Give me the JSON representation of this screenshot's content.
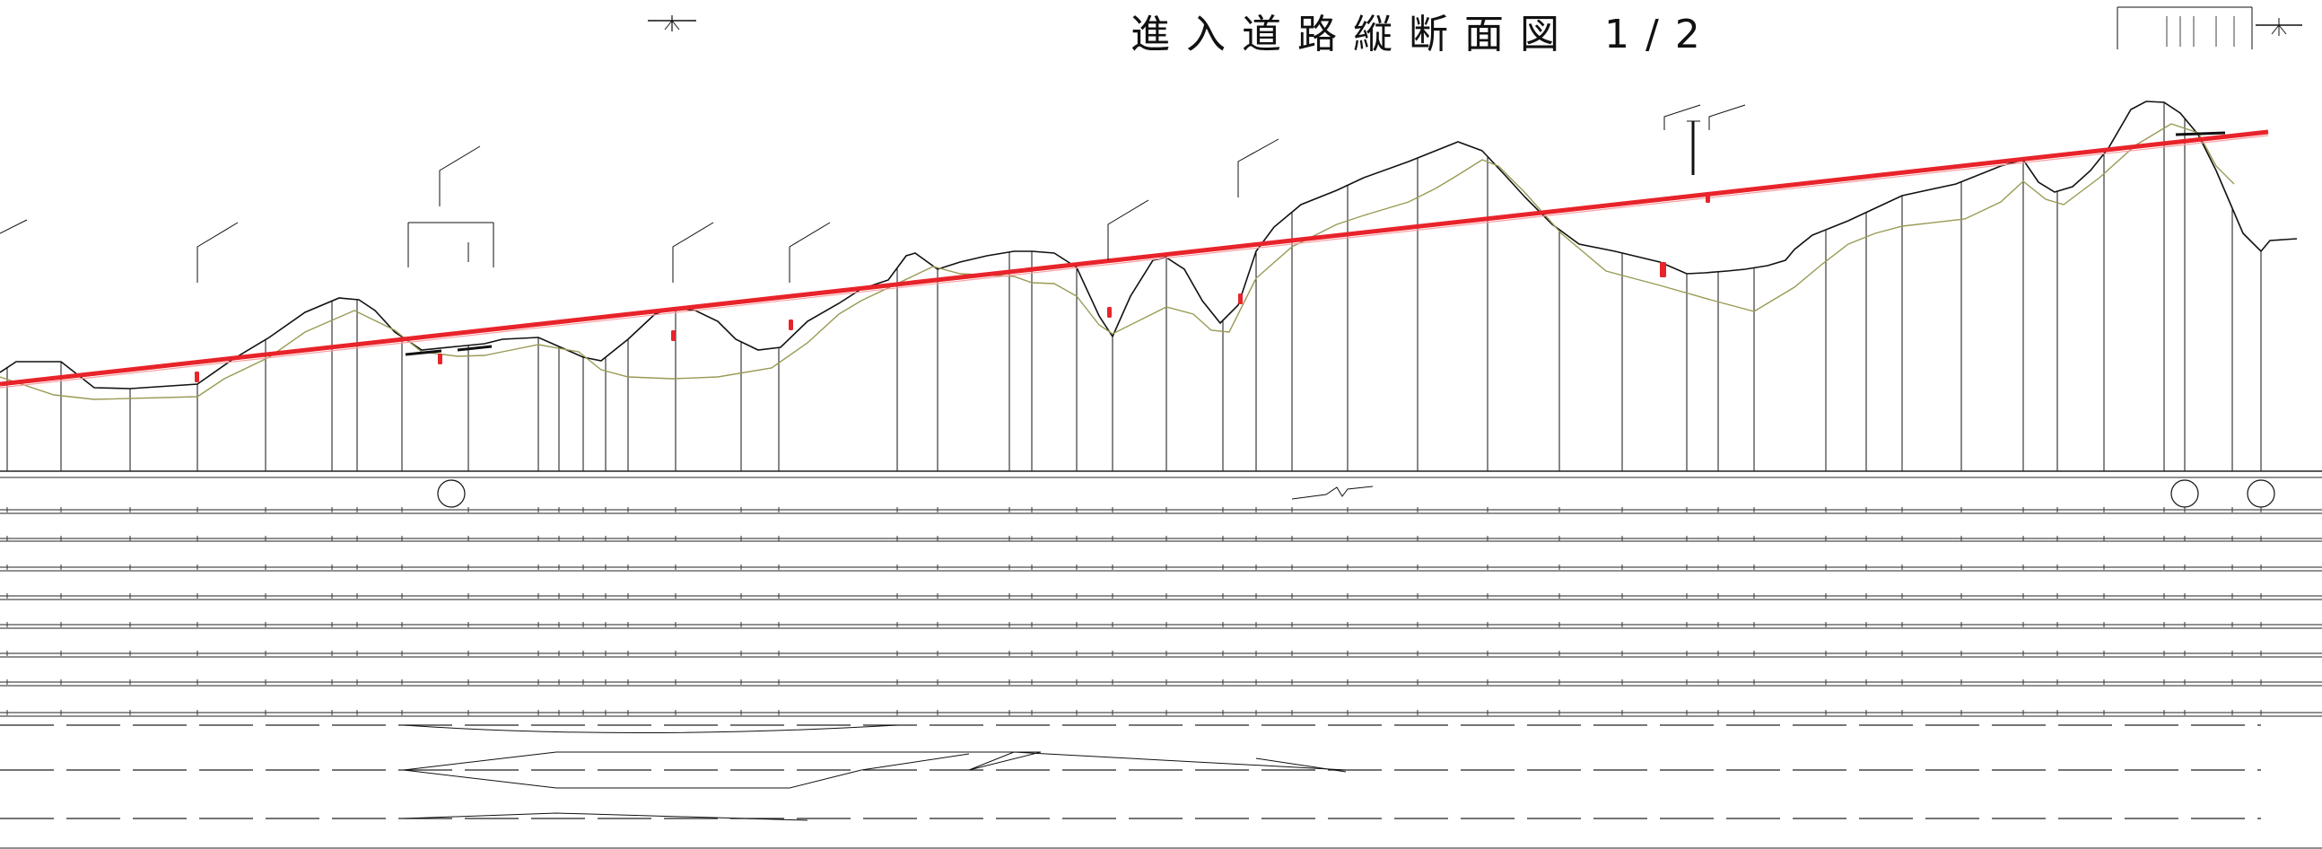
{
  "title": "進入道路縦断面図 1/2",
  "colors": {
    "ground_line": "#111111",
    "design_grade_line": "#e8232a",
    "subsurface_line": "#9a9a55",
    "marker": "#e8232a",
    "band_lines": "#222222"
  },
  "icons": [
    "north-arrow-icon",
    "scale-arrow-icon"
  ]
}
